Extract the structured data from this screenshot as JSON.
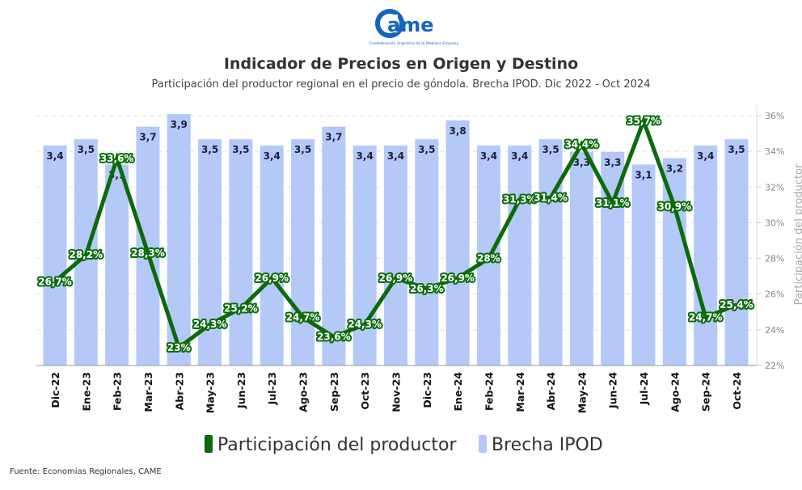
{
  "logo": {
    "text": "came",
    "tagline": "Confederación Argentina de la Mediana Empresa"
  },
  "title": "Indicador de Precios en Origen y Destino",
  "subtitle": "Participación del productor regional en el precio de góndola. Brecha IPOD. Dic 2022 - Oct 2024",
  "footer": "Fuente: Economías Regionales, CAME",
  "chart_data": {
    "type": "bar+line",
    "categories": [
      "Dic-22",
      "Ene-23",
      "Feb-23",
      "Mar-23",
      "Abr-23",
      "May-23",
      "Jun-23",
      "Jul-23",
      "Ago-23",
      "Sep-23",
      "Oct-23",
      "Nov-23",
      "Dic-23",
      "Ene-24",
      "Feb-24",
      "Mar-24",
      "Abr-24",
      "May-24",
      "Jun-24",
      "Jul-24",
      "Ago-24",
      "Sep-24",
      "Oct-24"
    ],
    "series": [
      {
        "name": "Participación del productor",
        "type": "line",
        "axis": "right",
        "color": "#0b6b0b",
        "values": [
          26.7,
          28.2,
          33.6,
          28.3,
          23,
          24.3,
          25.2,
          26.9,
          24.7,
          23.6,
          24.3,
          26.9,
          26.3,
          26.9,
          28,
          31.3,
          31.4,
          34.4,
          31.1,
          35.7,
          30.9,
          24.7,
          25.4
        ],
        "labels": [
          "26,7%",
          "28,2%",
          "33,6%",
          "28,3%",
          "23%",
          "24,3%",
          "25,2%",
          "26,9%",
          "24,7%",
          "23,6%",
          "24,3%",
          "26,9%",
          "26,3%",
          "26,9%",
          "28%",
          "31,3%",
          "31,4%",
          "34,4%",
          "31,1%",
          "35,7%",
          "30,9%",
          "24,7%",
          "25,4%"
        ]
      },
      {
        "name": "Brecha IPOD",
        "type": "bar",
        "axis": "hidden",
        "color": "#b4c9f7",
        "values": [
          3.4,
          3.5,
          3.1,
          3.7,
          3.9,
          3.5,
          3.5,
          3.4,
          3.5,
          3.7,
          3.4,
          3.4,
          3.5,
          3.8,
          3.4,
          3.4,
          3.5,
          3.3,
          3.3,
          3.1,
          3.2,
          3.4,
          3.5
        ],
        "labels": [
          "3,4",
          "3,5",
          "3,1",
          "3,7",
          "3,9",
          "3,5",
          "3,5",
          "3,4",
          "3,5",
          "3,7",
          "3,4",
          "3,4",
          "3,5",
          "3,8",
          "3,4",
          "3,4",
          "3,5",
          "3,3",
          "3,3",
          "3,1",
          "3,2",
          "3,4",
          "3,5"
        ]
      }
    ],
    "y_right": {
      "label": "Participación del productor",
      "ylim": [
        22,
        36
      ],
      "ticks": [
        "22%",
        "24%",
        "26%",
        "28%",
        "30%",
        "32%",
        "34%",
        "36%"
      ]
    },
    "grid": true,
    "legend": "bottom"
  }
}
